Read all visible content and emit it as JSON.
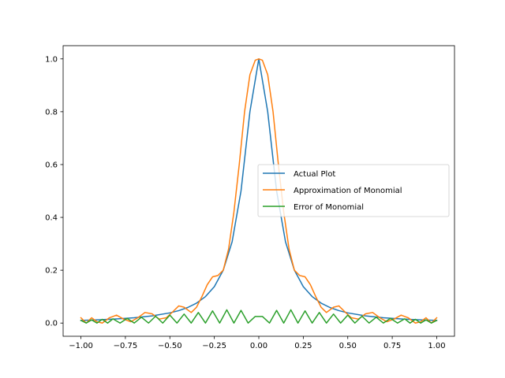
{
  "chart_data": {
    "type": "line",
    "title": "",
    "xlabel": "",
    "ylabel": "",
    "xlim": [
      -1.1,
      1.1
    ],
    "ylim": [
      -0.05,
      1.05
    ],
    "x_ticks": [
      -1.0,
      -0.75,
      -0.5,
      -0.25,
      0.0,
      0.25,
      0.5,
      0.75,
      1.0
    ],
    "x_tick_labels": [
      "−1.00",
      "−0.75",
      "−0.50",
      "−0.25",
      "0.00",
      "0.25",
      "0.50",
      "0.75",
      "1.00"
    ],
    "y_ticks": [
      0.0,
      0.2,
      0.4,
      0.6,
      0.8,
      1.0
    ],
    "y_tick_labels": [
      "0.0",
      "0.2",
      "0.4",
      "0.6",
      "0.8",
      "1.0"
    ],
    "grid": false,
    "legend_position": "center-right",
    "series": [
      {
        "name": "Actual Plot",
        "color": "#1f77b4",
        "x": [
          -1.0,
          -0.9,
          -0.8,
          -0.7,
          -0.6,
          -0.5,
          -0.45,
          -0.4,
          -0.35,
          -0.3,
          -0.25,
          -0.2,
          -0.15,
          -0.1,
          -0.05,
          0.0,
          0.05,
          0.1,
          0.15,
          0.2,
          0.25,
          0.3,
          0.35,
          0.4,
          0.45,
          0.5,
          0.6,
          0.7,
          0.8,
          0.9,
          1.0
        ],
        "y": [
          0.0099,
          0.0122,
          0.0154,
          0.02,
          0.027,
          0.0385,
          0.0471,
          0.0588,
          0.0755,
          0.1,
          0.1379,
          0.2,
          0.3077,
          0.5,
          0.8,
          1.0,
          0.8,
          0.5,
          0.3077,
          0.2,
          0.1379,
          0.1,
          0.0755,
          0.0588,
          0.0471,
          0.0385,
          0.027,
          0.02,
          0.0154,
          0.0122,
          0.0099
        ]
      },
      {
        "name": "Approximation of Monomial",
        "color": "#ff7f0e",
        "x": [
          -1.0,
          -0.97,
          -0.94,
          -0.91,
          -0.88,
          -0.84,
          -0.8,
          -0.76,
          -0.72,
          -0.68,
          -0.64,
          -0.6,
          -0.56,
          -0.52,
          -0.48,
          -0.45,
          -0.42,
          -0.38,
          -0.35,
          -0.32,
          -0.29,
          -0.26,
          -0.23,
          -0.2,
          -0.17,
          -0.14,
          -0.11,
          -0.08,
          -0.05,
          -0.02,
          0.0,
          0.02,
          0.05,
          0.08,
          0.11,
          0.14,
          0.17,
          0.2,
          0.23,
          0.26,
          0.29,
          0.32,
          0.35,
          0.38,
          0.42,
          0.45,
          0.48,
          0.52,
          0.56,
          0.6,
          0.64,
          0.68,
          0.72,
          0.76,
          0.8,
          0.84,
          0.88,
          0.91,
          0.94,
          0.97,
          1.0
        ],
        "y": [
          0.02,
          0.0,
          0.02,
          0.005,
          0.0,
          0.02,
          0.03,
          0.015,
          0.005,
          0.02,
          0.04,
          0.035,
          0.015,
          0.02,
          0.045,
          0.065,
          0.06,
          0.04,
          0.06,
          0.1,
          0.145,
          0.175,
          0.18,
          0.2,
          0.28,
          0.42,
          0.6,
          0.8,
          0.94,
          0.995,
          1.0,
          0.995,
          0.94,
          0.8,
          0.6,
          0.42,
          0.28,
          0.2,
          0.18,
          0.175,
          0.145,
          0.1,
          0.06,
          0.04,
          0.06,
          0.065,
          0.045,
          0.02,
          0.015,
          0.035,
          0.04,
          0.02,
          0.005,
          0.015,
          0.03,
          0.02,
          0.0,
          0.005,
          0.02,
          0.0,
          0.02
        ]
      },
      {
        "name": "Error of Monomial",
        "color": "#2ca02c",
        "x": [
          -1.0,
          -0.97,
          -0.94,
          -0.91,
          -0.88,
          -0.85,
          -0.82,
          -0.78,
          -0.74,
          -0.7,
          -0.66,
          -0.62,
          -0.58,
          -0.54,
          -0.5,
          -0.46,
          -0.42,
          -0.38,
          -0.34,
          -0.3,
          -0.26,
          -0.22,
          -0.18,
          -0.14,
          -0.1,
          -0.06,
          -0.02,
          0.02,
          0.06,
          0.1,
          0.14,
          0.18,
          0.22,
          0.26,
          0.3,
          0.34,
          0.38,
          0.42,
          0.46,
          0.5,
          0.54,
          0.58,
          0.62,
          0.66,
          0.7,
          0.74,
          0.78,
          0.82,
          0.85,
          0.88,
          0.91,
          0.94,
          0.97,
          1.0
        ],
        "y": [
          0.01,
          0.0,
          0.012,
          0.0,
          0.014,
          0.0,
          0.016,
          0.0,
          0.018,
          0.0,
          0.022,
          0.0,
          0.026,
          0.0,
          0.03,
          0.0,
          0.034,
          0.0,
          0.04,
          0.0,
          0.046,
          0.0,
          0.05,
          0.0,
          0.048,
          0.0,
          0.025,
          0.025,
          0.0,
          0.048,
          0.0,
          0.05,
          0.0,
          0.046,
          0.0,
          0.04,
          0.0,
          0.034,
          0.0,
          0.03,
          0.0,
          0.026,
          0.0,
          0.022,
          0.0,
          0.018,
          0.0,
          0.016,
          0.0,
          0.014,
          0.0,
          0.012,
          0.0,
          0.01
        ]
      }
    ]
  }
}
